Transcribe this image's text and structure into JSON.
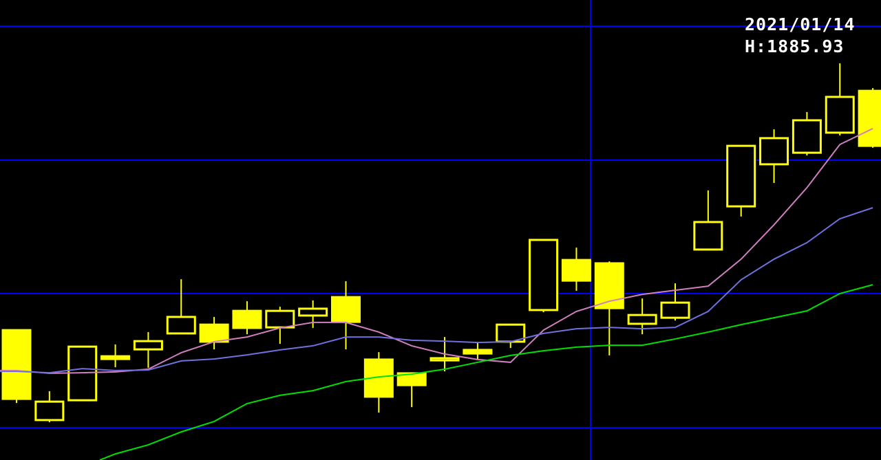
{
  "chart_data": {
    "type": "candlestick",
    "title": "",
    "xlabel": "",
    "ylabel": "",
    "grid": true,
    "crosshair": {
      "date": "2021/01/14",
      "high_label": "H:1885.93"
    },
    "colors": {
      "candle": "#ffff00",
      "grid": "#0000ff",
      "ma_short": "#d080c0",
      "ma_mid": "#7070e0",
      "ma_long": "#00e000",
      "text": "#ffffff",
      "background": "#000000"
    },
    "candles": [
      {
        "o": 1860.9,
        "h": 1860.9,
        "l": 1834.4,
        "c": 1835.9
      },
      {
        "o": 1828.2,
        "h": 1838.7,
        "l": 1827.4,
        "c": 1834.9
      },
      {
        "o": 1835.4,
        "h": 1854.9,
        "l": 1835.4,
        "c": 1854.9
      },
      {
        "o": 1851.4,
        "h": 1855.7,
        "l": 1847.4,
        "c": 1850.4
      },
      {
        "o": 1853.9,
        "h": 1860.2,
        "l": 1847.2,
        "c": 1856.9
      },
      {
        "o": 1859.7,
        "h": 1879.4,
        "l": 1859.7,
        "c": 1865.7
      },
      {
        "o": 1862.9,
        "h": 1865.7,
        "l": 1853.9,
        "c": 1856.7
      },
      {
        "o": 1867.9,
        "h": 1871.4,
        "l": 1859.4,
        "c": 1861.7
      },
      {
        "o": 1861.9,
        "h": 1869.4,
        "l": 1855.9,
        "c": 1867.9
      },
      {
        "o": 1866.2,
        "h": 1871.7,
        "l": 1861.7,
        "c": 1868.7
      },
      {
        "o": 1872.9,
        "h": 1878.7,
        "l": 1853.9,
        "c": 1863.9
      },
      {
        "o": 1850.2,
        "h": 1852.9,
        "l": 1830.9,
        "c": 1836.7
      },
      {
        "o": 1845.2,
        "h": 1845.2,
        "l": 1832.9,
        "c": 1840.9
      },
      {
        "o": 1849.9,
        "h": 1858.4,
        "l": 1845.9,
        "c": 1850.7
      },
      {
        "o": 1853.7,
        "h": 1856.2,
        "l": 1850.2,
        "c": 1852.4
      },
      {
        "o": 1856.7,
        "h": 1862.9,
        "l": 1854.4,
        "c": 1862.9
      },
      {
        "o": 1868.2,
        "h": 1893.7,
        "l": 1867.4,
        "c": 1893.7
      },
      {
        "o": 1886.4,
        "h": 1890.9,
        "l": 1875.2,
        "c": 1878.9
      },
      {
        "o": 1885.2,
        "h": 1885.9,
        "l": 1851.7,
        "c": 1868.9
      },
      {
        "o": 1863.2,
        "h": 1872.4,
        "l": 1859.4,
        "c": 1866.4
      },
      {
        "o": 1865.4,
        "h": 1877.9,
        "l": 1864.4,
        "c": 1870.9
      },
      {
        "o": 1890.2,
        "h": 1911.7,
        "l": 1890.2,
        "c": 1900.2
      },
      {
        "o": 1905.9,
        "h": 1927.9,
        "l": 1902.2,
        "c": 1927.9
      },
      {
        "o": 1921.2,
        "h": 1933.9,
        "l": 1914.4,
        "c": 1930.7
      },
      {
        "o": 1925.4,
        "h": 1940.2,
        "l": 1924.4,
        "c": 1937.2
      },
      {
        "o": 1932.7,
        "h": 1957.9,
        "l": 1931.7,
        "c": 1945.7
      },
      {
        "o": 1947.9,
        "h": 1948.9,
        "l": 1927.2,
        "c": 1927.9
      }
    ],
    "moving_averages": [
      {
        "key": "ma_short",
        "values": [
          1846.2,
          1845.2,
          1845.4,
          1845.7,
          1846.7,
          1852.7,
          1856.7,
          1858.4,
          1861.7,
          1863.7,
          1863.7,
          1860.2,
          1855.2,
          1852.2,
          1850.2,
          1849.2,
          1860.9,
          1867.7,
          1871.4,
          1873.9,
          1875.4,
          1876.9,
          1886.7,
          1899.2,
          1912.7,
          1928.4,
          1934.2
        ]
      },
      {
        "key": "ma_mid",
        "values": [
          1845.9,
          1845.4,
          1846.9,
          1846.2,
          1846.4,
          1849.7,
          1850.4,
          1851.9,
          1853.7,
          1855.2,
          1858.4,
          1858.4,
          1857.2,
          1856.9,
          1856.4,
          1856.7,
          1859.7,
          1861.4,
          1861.9,
          1861.4,
          1861.9,
          1867.7,
          1879.2,
          1886.7,
          1892.7,
          1901.4,
          1905.4
        ]
      },
      {
        "key": "ma_long",
        "values": [
          null,
          null,
          null,
          1815.9,
          1819.2,
          1823.9,
          1827.7,
          1834.2,
          1837.2,
          1838.9,
          1842.2,
          1843.9,
          1844.9,
          1846.7,
          1849.2,
          1851.7,
          1853.4,
          1854.7,
          1855.4,
          1855.4,
          1857.7,
          1860.2,
          1862.9,
          1865.4,
          1867.9,
          1874.2,
          1877.4
        ]
      }
    ]
  }
}
